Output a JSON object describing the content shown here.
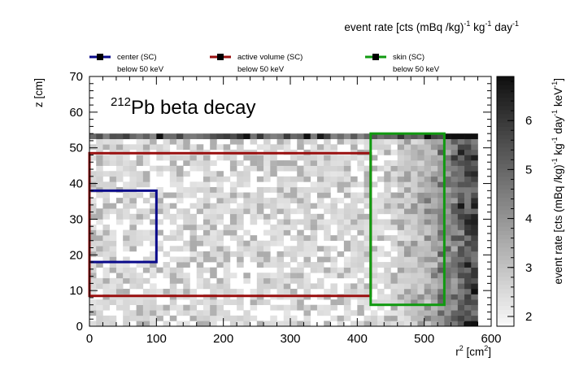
{
  "chart_data": {
    "type": "heatmap",
    "header_label_prefix": "event rate [cts (mBq /kg)",
    "header_label_mid": " kg",
    "header_label_mid2": " day",
    "annotation_prefix": "212",
    "annotation_suffix": "Pb beta decay",
    "xlabel_base": "r",
    "xlabel_sup": "2",
    "xlabel_unit_open": " [cm",
    "xlabel_unit_sup": "2",
    "xlabel_unit_close": "]",
    "ylabel": "z [cm]",
    "zlabel_text": "event rate [cts (mBq /kg)",
    "zlabel_kg": " kg",
    "zlabel_day": " day",
    "zlabel_kev": " keV",
    "zlabel_close": "]",
    "sup_minus1": "-1",
    "xlim": [
      0,
      600
    ],
    "ylim": [
      0,
      70
    ],
    "zlim": [
      1.8,
      6.9
    ],
    "x_ticks": [
      0,
      100,
      200,
      300,
      400,
      500,
      600
    ],
    "y_ticks": [
      0,
      10,
      20,
      30,
      40,
      50,
      60,
      70
    ],
    "z_ticks": [
      2,
      3,
      4,
      5,
      6
    ],
    "grid": false,
    "heatmap_extent": {
      "x": [
        0,
        580
      ],
      "y": [
        0,
        54
      ]
    },
    "heatmap_cell": {
      "dx": 10,
      "dy": 1.5
    },
    "series": [
      {
        "name": "center (SC)",
        "note": "below 50 keV",
        "color": "#0a0a8a",
        "region": {
          "x": [
            0,
            100
          ],
          "y": [
            18,
            38
          ]
        }
      },
      {
        "name": "active volume (SC)",
        "note": "below 50 keV",
        "color": "#9a1010",
        "region": {
          "x": [
            0,
            420
          ],
          "y": [
            8.5,
            48.5
          ]
        }
      },
      {
        "name": "skin (SC)",
        "note": "below 50 keV",
        "color": "#109a10",
        "region": {
          "x": [
            420,
            530
          ],
          "y": [
            6,
            54
          ]
        }
      }
    ]
  }
}
